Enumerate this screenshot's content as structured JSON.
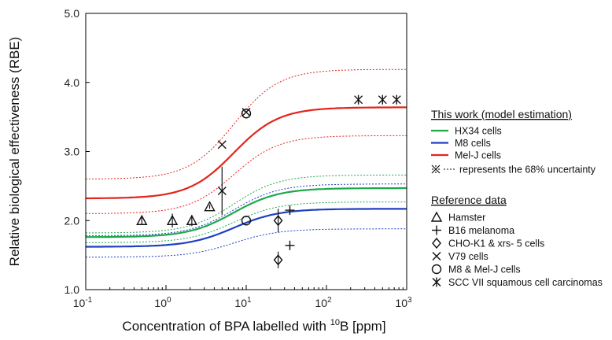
{
  "chart_data": {
    "type": "line",
    "xscale": "log",
    "xlim": [
      0.1,
      1000
    ],
    "ylim": [
      1.0,
      5.0
    ],
    "xlabel": "Concentration of BPA labelled with ",
    "xlabel_sup": "10",
    "xlabel_tail": "B [ppm]",
    "ylabel": "Relative biological effectiveness (RBE)",
    "y_ticks": [
      "1.0",
      "2.0",
      "3.0",
      "4.0",
      "5.0"
    ],
    "x_ticks": [
      {
        "base": "10",
        "exp": "-1"
      },
      {
        "base": "10",
        "exp": "0"
      },
      {
        "base": "10",
        "exp": "1"
      },
      {
        "base": "10",
        "exp": "2"
      },
      {
        "base": "10",
        "exp": "3"
      }
    ],
    "x_tick_values": [
      0.1,
      1,
      10,
      100,
      1000
    ],
    "y_tick_values": [
      1,
      2,
      3,
      4,
      5
    ],
    "curves": [
      {
        "name": "HX34 cells",
        "color": "#1ea84a",
        "low": 1.76,
        "high": 2.47,
        "unc_low": 1.68,
        "unc_high": 2.27,
        "unc_low_high": 1.82,
        "unc_high_high": 2.66
      },
      {
        "name": "M8 cells",
        "color": "#1f3fc4",
        "low": 1.62,
        "high": 2.17,
        "unc_low": 1.47,
        "unc_high": 1.88,
        "unc_low_high": 1.78,
        "unc_high_high": 2.53
      },
      {
        "name": "Mel-J cells",
        "color": "#e3241b",
        "low": 2.32,
        "high": 3.64,
        "unc_low": 2.1,
        "unc_high": 3.23,
        "unc_low_high": 2.6,
        "unc_high_high": 4.19
      }
    ],
    "curve_midpoint": 7.0,
    "curve_steepness": 0.62,
    "points": [
      {
        "series": "Hamster",
        "marker": "triangle",
        "x": 0.5,
        "y": 2.0,
        "err": 0.05
      },
      {
        "series": "Hamster",
        "marker": "triangle",
        "x": 1.2,
        "y": 2.0,
        "err": 0.1
      },
      {
        "series": "Hamster",
        "marker": "triangle",
        "x": 2.1,
        "y": 2.0,
        "err": 0.08
      },
      {
        "series": "Hamster",
        "marker": "triangle",
        "x": 3.5,
        "y": 2.2,
        "err": 0.03
      },
      {
        "series": "B16 melanoma",
        "marker": "plus",
        "x": 35,
        "y": 2.15,
        "err": 0
      },
      {
        "series": "B16 melanoma",
        "marker": "plus",
        "x": 35,
        "y": 1.64,
        "err": 0
      },
      {
        "series": "CHO-K1 & xrs- 5 cells",
        "marker": "diamond",
        "x": 25,
        "y": 2.0,
        "err": 0.17
      },
      {
        "series": "CHO-K1 & xrs- 5 cells",
        "marker": "diamond",
        "x": 25,
        "y": 1.43,
        "err": 0.12
      },
      {
        "series": "V79 cells",
        "marker": "cross",
        "x": 5,
        "y": 3.1,
        "err": 0
      },
      {
        "series": "V79 cells",
        "marker": "cross",
        "x": 5,
        "y": 2.43,
        "err": 0.35
      },
      {
        "series": "V79 cells",
        "marker": "cross",
        "x": 10,
        "y": 3.57,
        "err": 0
      },
      {
        "series": "M8 & Mel-J cells",
        "marker": "circle",
        "x": 10,
        "y": 2.0,
        "err": 0
      },
      {
        "series": "M8 & Mel-J cells",
        "marker": "circle",
        "x": 10,
        "y": 3.55,
        "err": 0
      },
      {
        "series": "SCC VII squamous cell carcinomas",
        "marker": "asterisk",
        "x": 250,
        "y": 3.75,
        "err": 0
      },
      {
        "series": "SCC VII squamous cell carcinomas",
        "marker": "asterisk",
        "x": 500,
        "y": 3.75,
        "err": 0
      },
      {
        "series": "SCC VII squamous cell carcinomas",
        "marker": "asterisk",
        "x": 750,
        "y": 3.75,
        "err": 0
      }
    ],
    "legend": {
      "model_heading": "This work (model estimation)",
      "model_items": [
        "HX34 cells",
        "M8 cells",
        "Mel-J cells"
      ],
      "uncertainty_label": "represents the 68% uncertainty",
      "reference_heading": "Reference data",
      "reference_items": [
        {
          "marker": "triangle",
          "label": "Hamster"
        },
        {
          "marker": "plus",
          "label": "B16 melanoma"
        },
        {
          "marker": "diamond",
          "label": "CHO-K1 & xrs- 5 cells"
        },
        {
          "marker": "cross",
          "label": "V79 cells"
        },
        {
          "marker": "circle",
          "label": "M8 & Mel-J cells"
        },
        {
          "marker": "asterisk",
          "label": "SCC VII squamous cell carcinomas"
        }
      ]
    }
  }
}
